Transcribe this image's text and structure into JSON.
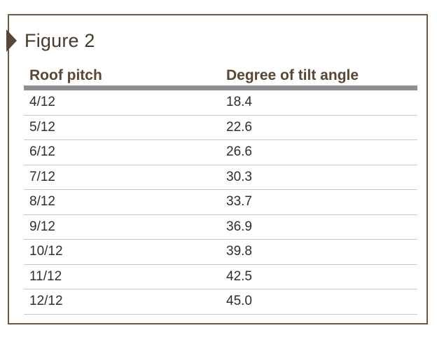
{
  "figure": {
    "title": "Figure 2",
    "columns": [
      "Roof pitch",
      "Degree of tilt angle"
    ],
    "rows": [
      [
        "4/12",
        "18.4"
      ],
      [
        "5/12",
        "22.6"
      ],
      [
        "6/12",
        "26.6"
      ],
      [
        "7/12",
        "30.3"
      ],
      [
        "8/12",
        "33.7"
      ],
      [
        "9/12",
        "36.9"
      ],
      [
        "10/12",
        "39.8"
      ],
      [
        "11/12",
        "42.5"
      ],
      [
        "12/12",
        "45.0"
      ]
    ]
  },
  "colors": {
    "frame_border": "#6b5a45",
    "marker": "#5a4632",
    "header_text": "#5a4632",
    "header_rule": "#8f8f92",
    "row_divider": "#c9c9c9"
  }
}
